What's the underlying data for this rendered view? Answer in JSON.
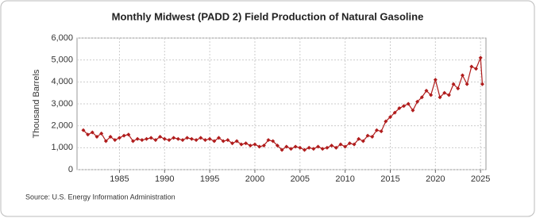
{
  "chart_data": {
    "type": "line",
    "title": "Monthly Midwest (PADD 2) Field Production of Natural Gasoline",
    "y_label": "Thousand Barrels",
    "source": "Source: U.S. Energy Information Administration",
    "xlim": [
      1980.3,
      2025.6
    ],
    "xticks": [
      1985,
      1990,
      1995,
      2000,
      2005,
      2010,
      2015,
      2020,
      2025
    ],
    "ylim": [
      0,
      6000
    ],
    "yticks": [
      {
        "value": 0,
        "label": "0"
      },
      {
        "value": 1000,
        "label": "1,000"
      },
      {
        "value": 2000,
        "label": "2,000"
      },
      {
        "value": 3000,
        "label": "3,000"
      },
      {
        "value": 4000,
        "label": "4,000"
      },
      {
        "value": 5000,
        "label": "5,000"
      },
      {
        "value": 6000,
        "label": "6,000"
      }
    ],
    "grid": true,
    "x": [
      1981,
      1981.5,
      1982,
      1982.5,
      1983,
      1983.5,
      1984,
      1984.5,
      1985,
      1985.5,
      1986,
      1986.5,
      1987,
      1987.5,
      1988,
      1988.5,
      1989,
      1989.5,
      1990,
      1990.5,
      1991,
      1991.5,
      1992,
      1992.5,
      1993,
      1993.5,
      1994,
      1994.5,
      1995,
      1995.5,
      1996,
      1996.5,
      1997,
      1997.5,
      1998,
      1998.5,
      1999,
      1999.5,
      2000,
      2000.5,
      2001,
      2001.5,
      2002,
      2002.5,
      2003,
      2003.5,
      2004,
      2004.5,
      2005,
      2005.5,
      2006,
      2006.5,
      2007,
      2007.5,
      2008,
      2008.5,
      2009,
      2009.5,
      2010,
      2010.5,
      2011,
      2011.5,
      2012,
      2012.5,
      2013,
      2013.5,
      2014,
      2014.5,
      2015,
      2015.5,
      2016,
      2016.5,
      2017,
      2017.5,
      2018,
      2018.5,
      2019,
      2019.5,
      2020,
      2020.5,
      2021,
      2021.5,
      2022,
      2022.5,
      2023,
      2023.5,
      2024,
      2024.5,
      2025,
      2025.2
    ],
    "series": [
      {
        "name": "Natural Gasoline",
        "color": "#b01c1c",
        "values": [
          1800,
          1600,
          1700,
          1500,
          1650,
          1300,
          1500,
          1350,
          1450,
          1550,
          1600,
          1300,
          1400,
          1350,
          1400,
          1450,
          1350,
          1500,
          1400,
          1350,
          1450,
          1400,
          1350,
          1450,
          1400,
          1350,
          1450,
          1350,
          1400,
          1300,
          1450,
          1300,
          1350,
          1200,
          1300,
          1150,
          1200,
          1100,
          1150,
          1050,
          1100,
          1350,
          1300,
          1100,
          900,
          1050,
          950,
          1050,
          1000,
          900,
          1000,
          950,
          1050,
          950,
          1000,
          1100,
          1000,
          1150,
          1050,
          1200,
          1150,
          1400,
          1300,
          1550,
          1500,
          1800,
          1750,
          2200,
          2400,
          2600,
          2800,
          2900,
          3000,
          2700,
          3100,
          3300,
          3600,
          3400,
          4100,
          3300,
          3500,
          3400,
          3900,
          3700,
          4300,
          3900,
          4700,
          4600,
          5100,
          3900
        ]
      }
    ]
  }
}
